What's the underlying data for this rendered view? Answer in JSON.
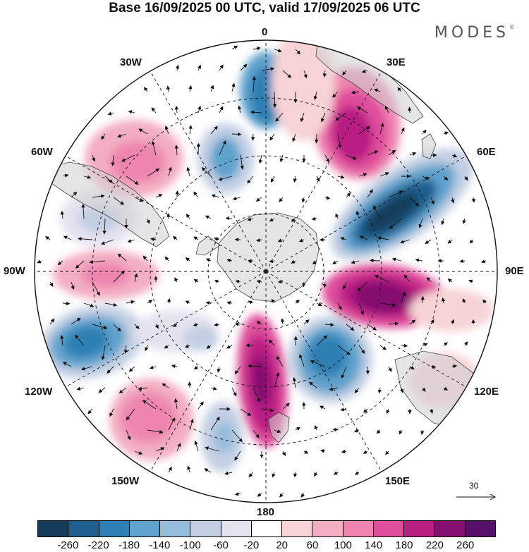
{
  "title": "Base 16/09/2025 00 UTC, valid 17/09/2025 06 UTC",
  "logo": "MODES",
  "logo_mark": "©",
  "longitude_labels": {
    "n0": "0",
    "n30e": "30E",
    "n60e": "60E",
    "n90e": "90E",
    "n120e": "120E",
    "n150e": "150E",
    "n180": "180",
    "n150w": "150W",
    "n120w": "120W",
    "n90w": "90W",
    "n60w": "60W",
    "n30w": "30W"
  },
  "reference_vector": {
    "label": "30"
  },
  "colorbar": {
    "colors": [
      "#163c5b",
      "#1f5f8f",
      "#2e7fb4",
      "#5ea2cd",
      "#95bcdb",
      "#c2cfe3",
      "#e4e2ef",
      "#ffffff",
      "#f7d3d6",
      "#f3aec1",
      "#ee85b0",
      "#df4e9b",
      "#b91f83",
      "#841070",
      "#571069"
    ],
    "ticks": [
      "-260",
      "-220",
      "-180",
      "-140",
      "-100",
      "-60",
      "-20",
      "20",
      "60",
      "100",
      "140",
      "180",
      "220",
      "260"
    ]
  }
}
